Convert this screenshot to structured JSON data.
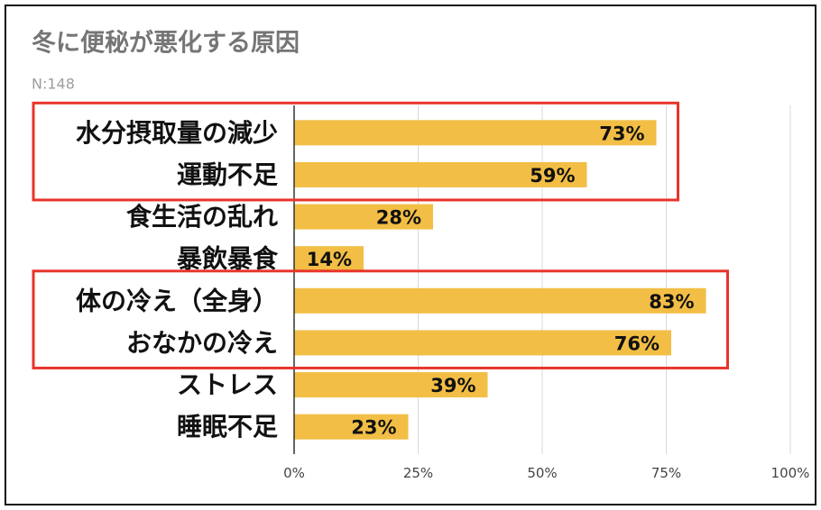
{
  "chart_data": {
    "type": "bar",
    "orientation": "horizontal",
    "title": "冬に便秘が悪化する原因",
    "subtitle": "N:148",
    "categories": [
      "水分摂取量の減少",
      "運動不足",
      "食生活の乱れ",
      "暴飲暴食",
      "体の冷え（全身）",
      "おなかの冷え",
      "ストレス",
      "睡眠不足"
    ],
    "values": [
      73,
      59,
      28,
      14,
      83,
      76,
      39,
      23
    ],
    "value_labels": [
      "73%",
      "59%",
      "28%",
      "14%",
      "83%",
      "76%",
      "39%",
      "23%"
    ],
    "xlim": [
      0,
      100
    ],
    "x_tick_values": [
      0,
      25,
      50,
      75,
      100
    ],
    "x_ticks": [
      "0%",
      "25%",
      "50%",
      "75%",
      "100%"
    ],
    "grid": true,
    "legend": "none",
    "bar_color": "#f2be45",
    "highlight_color": "#e8342c",
    "highlight_groups": [
      [
        0,
        1
      ],
      [
        4,
        5
      ]
    ]
  }
}
